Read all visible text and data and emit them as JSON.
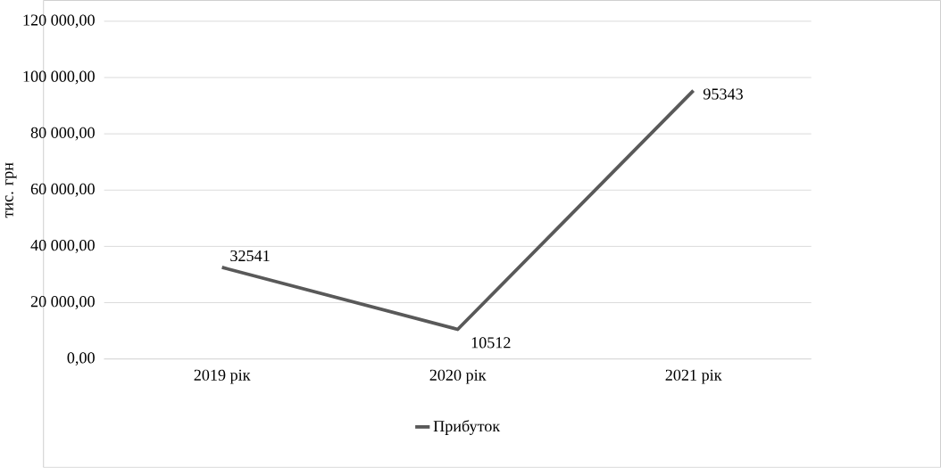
{
  "chart_data": {
    "type": "line",
    "ylabel": "тис. грн",
    "categories": [
      "2019 рік",
      "2020 рік",
      "2021 рік"
    ],
    "series": [
      {
        "name": "Прибуток",
        "color": "#595959",
        "values": [
          32541,
          10512,
          95343
        ],
        "value_labels": [
          "32541",
          "10512",
          "95343"
        ]
      }
    ],
    "ylim": [
      0,
      120000
    ],
    "yticks": [
      {
        "value": 0,
        "label": "0,00"
      },
      {
        "value": 20000,
        "label": "20 000,00"
      },
      {
        "value": 40000,
        "label": "40 000,00"
      },
      {
        "value": 60000,
        "label": "60 000,00"
      },
      {
        "value": 80000,
        "label": "80 000,00"
      },
      {
        "value": 100000,
        "label": "100 000,00"
      },
      {
        "value": 120000,
        "label": "120 000,00"
      }
    ],
    "grid": "y",
    "legend": "bottom",
    "marker": "none",
    "line_style": "solid"
  }
}
